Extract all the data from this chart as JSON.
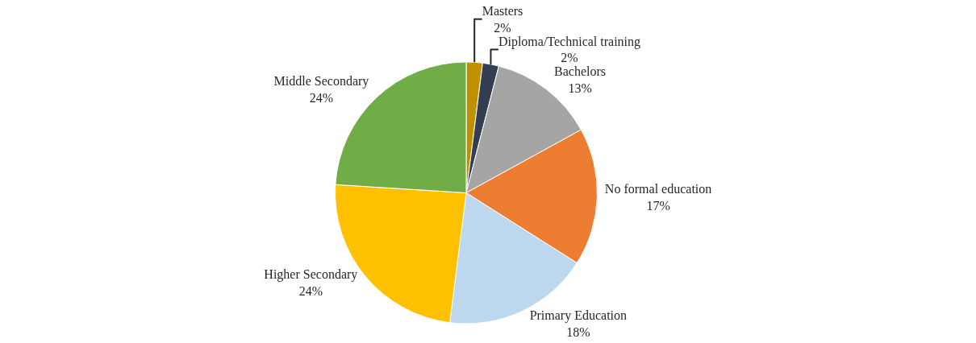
{
  "chart_data": {
    "type": "pie",
    "categories": [
      "Masters",
      "Diploma/Technical training",
      "Bachelors",
      "No formal education",
      "Primary Education",
      "Higher Secondary",
      "Middle Secondary"
    ],
    "values": [
      2,
      2,
      13,
      17,
      18,
      24,
      24
    ],
    "value_labels": [
      "2%",
      "2%",
      "13%",
      "17%",
      "18%",
      "24%",
      "24%"
    ],
    "colors": [
      "#bf9000",
      "#333f50",
      "#a5a5a5",
      "#ed7d31",
      "#bdd7ee",
      "#ffc000",
      "#70ad47"
    ],
    "legend": false
  }
}
